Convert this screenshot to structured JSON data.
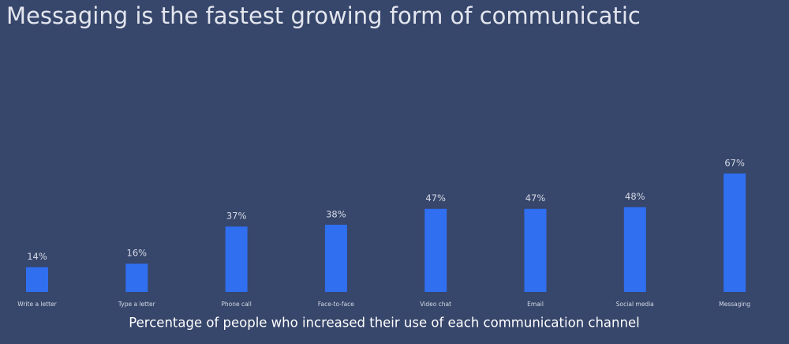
{
  "chart_data": {
    "type": "bar",
    "title": "Messaging is the fastest growing form of communicatic",
    "x_label": "Percentage of people who increased their use of each communication channel",
    "categories": [
      "Write a letter",
      "Type a letter",
      "Phone call",
      "Face-to-face",
      "Video chat",
      "Email",
      "Social media",
      "Messaging"
    ],
    "values": [
      14,
      16,
      37,
      38,
      47,
      47,
      48,
      67
    ],
    "value_labels": [
      "14%",
      "16%",
      "37%",
      "38%",
      "47%",
      "47%",
      "48%",
      "67%"
    ],
    "color": "#2f6ff0"
  }
}
